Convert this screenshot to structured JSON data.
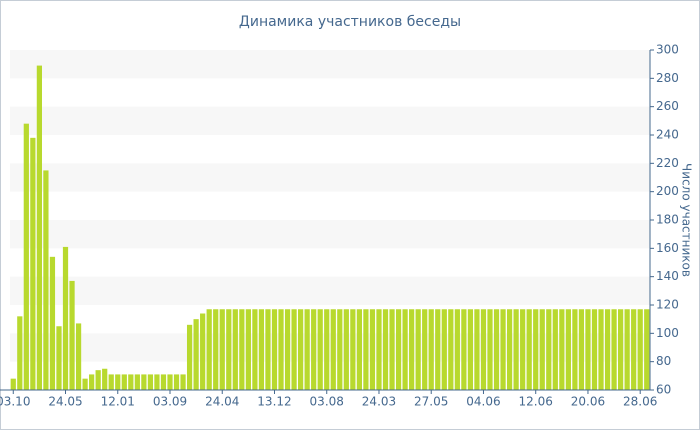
{
  "chart_data": {
    "type": "bar",
    "title": "Динамика участников беседы",
    "y_label": "Число участников",
    "categories": [
      "03.10",
      null,
      null,
      null,
      null,
      null,
      null,
      null,
      "24.05",
      null,
      null,
      null,
      null,
      null,
      null,
      null,
      "12.01",
      null,
      null,
      null,
      null,
      null,
      null,
      null,
      "03.09",
      null,
      null,
      null,
      null,
      null,
      null,
      null,
      "24.04",
      null,
      null,
      null,
      null,
      null,
      null,
      null,
      "13.12",
      null,
      null,
      null,
      null,
      null,
      null,
      null,
      "03.08",
      null,
      null,
      null,
      null,
      null,
      null,
      null,
      "24.03",
      null,
      null,
      null,
      null,
      null,
      null,
      null,
      "27.05",
      null,
      null,
      null,
      null,
      null,
      null,
      null,
      "04.06",
      null,
      null,
      null,
      null,
      null,
      null,
      null,
      "12.06",
      null,
      null,
      null,
      null,
      null,
      null,
      null,
      "20.06",
      null,
      null,
      null,
      null,
      null,
      null,
      null,
      "28.06",
      null
    ],
    "values": [
      68,
      112,
      248,
      238,
      289,
      215,
      154,
      105,
      161,
      137,
      107,
      68,
      71,
      74,
      75,
      71,
      71,
      71,
      71,
      71,
      71,
      71,
      71,
      71,
      71,
      71,
      71,
      106,
      110,
      114,
      117,
      117,
      117,
      117,
      117,
      117,
      117,
      117,
      117,
      117,
      117,
      117,
      117,
      117,
      117,
      117,
      117,
      117,
      117,
      117,
      117,
      117,
      117,
      117,
      117,
      117,
      117,
      117,
      117,
      117,
      117,
      117,
      117,
      117,
      117,
      117,
      117,
      117,
      117,
      117,
      117,
      117,
      117,
      117,
      117,
      117,
      117,
      117,
      117,
      117,
      117,
      117,
      117,
      117,
      117,
      117,
      117,
      117,
      117,
      117,
      117,
      117,
      117,
      117,
      117,
      117,
      117,
      117
    ],
    "color": "#b8d92e",
    "ylim": [
      60,
      300
    ],
    "yticks": [
      60,
      80,
      100,
      120,
      140,
      160,
      180,
      200,
      220,
      240,
      260,
      280,
      300
    ],
    "y_axis_side": "right",
    "grid": true
  }
}
